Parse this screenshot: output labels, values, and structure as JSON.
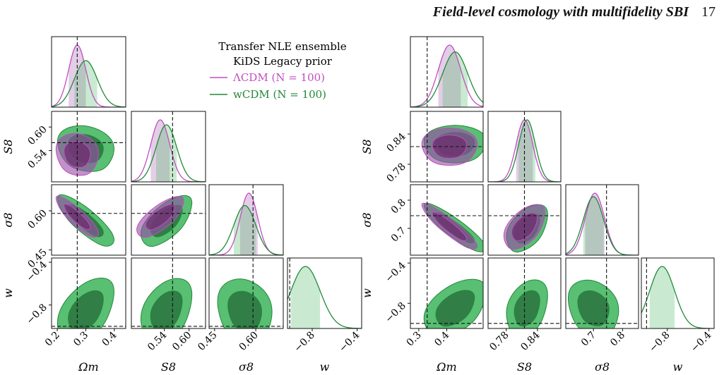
{
  "header": {
    "title": "Field-level cosmology with multifidelity SBI",
    "page_number": "17"
  },
  "colors": {
    "lcdm": "#c04ec0",
    "wcdm": "#22883a",
    "wcdm_fill": "#3cb45a",
    "lcdm_fill": "#9a4aa8",
    "overlap": "#5a3a5a",
    "truth": "#111111"
  },
  "legend": {
    "title_line1": "Transfer NLE ensemble",
    "title_line2": "KiDS Legacy prior",
    "entries": [
      {
        "label": "ΛCDM  (N = 100)",
        "color": "#c04ec0"
      },
      {
        "label": "wCDM  (N = 100)",
        "color": "#22883a"
      }
    ]
  },
  "chart_data": [
    {
      "type": "corner",
      "params": [
        "Om",
        "S8",
        "sigma8",
        "w"
      ],
      "axis_labels": [
        "Ωm",
        "S8",
        "σ8",
        "w"
      ],
      "ranges": {
        "Om": [
          0.18,
          0.44
        ],
        "S8": [
          0.46,
          0.64
        ],
        "sigma8": [
          0.43,
          0.7
        ],
        "w": [
          -1.02,
          -0.36
        ]
      },
      "ticks": {
        "Om": {
          "values": [
            0.2,
            0.3,
            0.4
          ],
          "labels": [
            "0.2",
            "0.3",
            "0.4"
          ]
        },
        "S8": {
          "values": [
            0.54,
            0.6
          ],
          "labels": [
            "0.54",
            "0.60"
          ]
        },
        "sigma8": {
          "values": [
            0.45,
            0.6
          ],
          "labels": [
            "0.45",
            "0.60"
          ]
        },
        "w": {
          "values": [
            -0.8,
            -0.4
          ],
          "labels": [
            "−0.8",
            "−0.4"
          ]
        }
      },
      "truth": {
        "Om": 0.27,
        "S8": 0.56,
        "sigma8": 0.59,
        "w": -1.0
      },
      "lcdm": {
        "mean": {
          "Om": 0.27,
          "S8": 0.53,
          "sigma8": 0.575
        },
        "std": {
          "Om": 0.03,
          "S8": 0.023,
          "sigma8": 0.032
        },
        "corr": {
          "Om-S8": -0.1,
          "Om-sigma8": -0.85,
          "S8-sigma8": 0.7
        }
      },
      "wcdm": {
        "mean": {
          "Om": 0.3,
          "S8": 0.545,
          "sigma8": 0.56,
          "w": -0.86
        },
        "std": {
          "Om": 0.04,
          "S8": 0.025,
          "sigma8": 0.04,
          "w": 0.13
        },
        "corr": {
          "Om-S8": -0.15,
          "Om-sigma8": -0.8,
          "S8-sigma8": 0.6,
          "Om-w": 0.45,
          "S8-w": 0.35,
          "sigma8-w": -0.15
        }
      }
    },
    {
      "type": "corner",
      "params": [
        "Om",
        "S8",
        "sigma8",
        "w"
      ],
      "axis_labels": [
        "Ωm",
        "S8",
        "σ8",
        "w"
      ],
      "ranges": {
        "Om": [
          0.27,
          0.53
        ],
        "S8": [
          0.745,
          0.885
        ],
        "sigma8": [
          0.605,
          0.855
        ],
        "w": [
          -1.05,
          -0.35
        ]
      },
      "ticks": {
        "Om": {
          "values": [
            0.3,
            0.4
          ],
          "labels": [
            "0.3",
            "0.4"
          ]
        },
        "S8": {
          "values": [
            0.78,
            0.84
          ],
          "labels": [
            "0.78",
            "0.84"
          ]
        },
        "sigma8": {
          "values": [
            0.7,
            0.8
          ],
          "labels": [
            "0.7",
            "0.8"
          ]
        },
        "w": {
          "values": [
            -0.8,
            -0.4
          ],
          "labels": [
            "−0.8",
            "−0.4"
          ]
        }
      },
      "truth": {
        "Om": 0.33,
        "S8": 0.815,
        "sigma8": 0.745,
        "w": -1.0
      },
      "lcdm": {
        "mean": {
          "Om": 0.41,
          "S8": 0.815,
          "sigma8": 0.705
        },
        "std": {
          "Om": 0.04,
          "S8": 0.016,
          "sigma8": 0.033
        },
        "corr": {
          "Om-S8": 0.0,
          "Om-sigma8": -0.9,
          "S8-sigma8": 0.5
        }
      },
      "wcdm": {
        "mean": {
          "Om": 0.43,
          "S8": 0.82,
          "sigma8": 0.7,
          "w": -0.85
        },
        "std": {
          "Om": 0.045,
          "S8": 0.016,
          "sigma8": 0.035,
          "w": 0.12
        },
        "corr": {
          "Om-S8": 0.0,
          "Om-sigma8": -0.88,
          "S8-sigma8": 0.45,
          "Om-w": 0.45,
          "S8-w": 0.3,
          "sigma8-w": -0.2
        }
      }
    }
  ]
}
